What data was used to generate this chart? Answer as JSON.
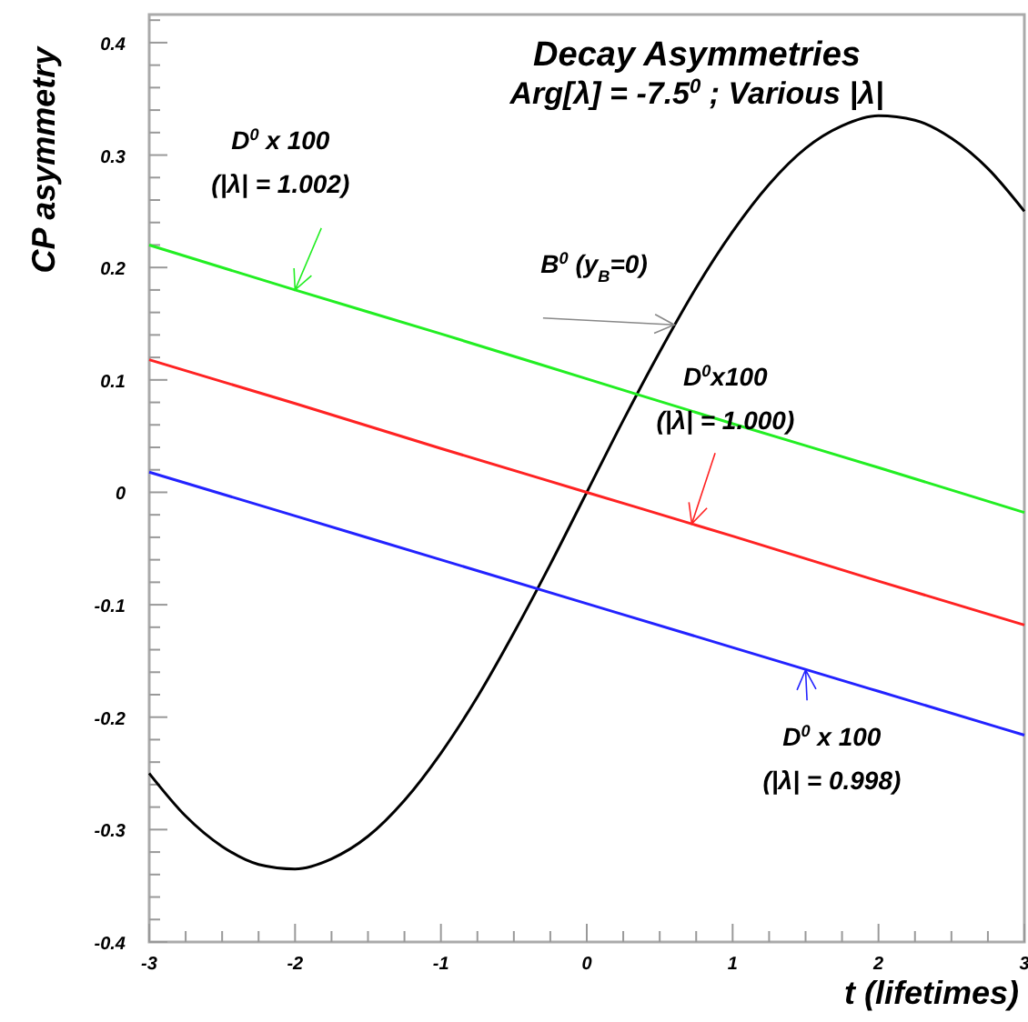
{
  "chart_data": {
    "type": "line",
    "title": "Decay Asymmetries",
    "subtitle": "Arg[λ] = -7.5$^{0}$ ; Various |λ|",
    "xlabel": "t (lifetimes)",
    "ylabel": "CP asymmetry",
    "xlim": [
      -3,
      3
    ],
    "xticks": [
      -3,
      {
        "value": -2.75,
        "label": null
      },
      {
        "value": -2.5,
        "label": null
      },
      {
        "value": -2.25,
        "label": null
      },
      -2,
      {
        "value": -1.75,
        "label": null
      },
      {
        "value": -1.5,
        "label": null
      },
      {
        "value": -1.25,
        "label": null
      },
      -1,
      {
        "value": -0.75,
        "label": null
      },
      {
        "value": -0.5,
        "label": null
      },
      {
        "value": -0.25,
        "label": null
      },
      0,
      {
        "value": 0.25,
        "label": null
      },
      {
        "value": 0.5,
        "label": null
      },
      {
        "value": 0.75,
        "label": null
      },
      1,
      {
        "value": 1.25,
        "label": null
      },
      {
        "value": 1.5,
        "label": null
      },
      {
        "value": 1.75,
        "label": null
      },
      2,
      {
        "value": 2.25,
        "label": null
      },
      {
        "value": 2.5,
        "label": null
      },
      {
        "value": 2.75,
        "label": null
      },
      3
    ],
    "ylim": [
      -0.4,
      0.425
    ],
    "yticks": [
      -0.4,
      {
        "value": -0.38,
        "label": null
      },
      {
        "value": -0.36,
        "label": null
      },
      {
        "value": -0.34,
        "label": null
      },
      {
        "value": -0.32,
        "label": null
      },
      -0.3,
      {
        "value": -0.28,
        "label": null
      },
      {
        "value": -0.26,
        "label": null
      },
      {
        "value": -0.24,
        "label": null
      },
      {
        "value": -0.22,
        "label": null
      },
      -0.2,
      {
        "value": -0.18,
        "label": null
      },
      {
        "value": -0.16,
        "label": null
      },
      {
        "value": -0.14,
        "label": null
      },
      {
        "value": -0.12,
        "label": null
      },
      -0.1,
      {
        "value": -0.08,
        "label": null
      },
      {
        "value": -0.06,
        "label": null
      },
      {
        "value": -0.04,
        "label": null
      },
      {
        "value": -0.02,
        "label": null
      },
      0,
      {
        "value": 0.02,
        "label": null
      },
      {
        "value": 0.04,
        "label": null
      },
      {
        "value": 0.06,
        "label": null
      },
      {
        "value": 0.08,
        "label": null
      },
      0.1,
      {
        "value": 0.12,
        "label": null
      },
      {
        "value": 0.14,
        "label": null
      },
      {
        "value": 0.16,
        "label": null
      },
      {
        "value": 0.18,
        "label": null
      },
      0.2,
      {
        "value": 0.22,
        "label": null
      },
      {
        "value": 0.24,
        "label": null
      },
      {
        "value": 0.26,
        "label": null
      },
      {
        "value": 0.28,
        "label": null
      },
      0.3,
      {
        "value": 0.32,
        "label": null
      },
      {
        "value": 0.34,
        "label": null
      },
      {
        "value": 0.36,
        "label": null
      },
      {
        "value": 0.38,
        "label": null
      },
      0.4,
      {
        "value": 0.42,
        "label": null
      }
    ],
    "x": [
      -3,
      -2.75,
      -2.5,
      -2.25,
      -2,
      -1.75,
      -1.5,
      -1.25,
      -1,
      -0.75,
      -0.5,
      -0.25,
      0,
      0.25,
      0.5,
      0.75,
      1,
      1.25,
      1.5,
      1.75,
      2,
      2.25,
      2.5,
      2.75,
      3
    ],
    "series": [
      {
        "color": "#000000",
        "values": [
          -0.25,
          -0.288,
          -0.315,
          -0.331,
          -0.335,
          -0.326,
          -0.306,
          -0.274,
          -0.232,
          -0.182,
          -0.125,
          -0.064,
          0,
          0.064,
          0.125,
          0.182,
          0.232,
          0.274,
          0.306,
          0.326,
          0.335,
          0.331,
          0.315,
          0.288,
          0.25
        ]
      },
      {
        "color": "#22ee22",
        "x": [
          -3,
          -2,
          -1,
          0,
          1,
          2,
          3
        ],
        "values": [
          0.22,
          0.18,
          0.141,
          0.101,
          0.061,
          0.022,
          -0.018
        ]
      },
      {
        "color": "#ff2222",
        "x": [
          -3,
          -2,
          -1,
          0,
          1,
          2,
          3
        ],
        "values": [
          0.118,
          0.079,
          0.039,
          0,
          -0.039,
          -0.079,
          -0.118
        ]
      },
      {
        "color": "#2222ff",
        "x": [
          -3,
          -2,
          -1,
          0,
          1,
          2,
          3
        ],
        "values": [
          0.018,
          -0.021,
          -0.06,
          -0.099,
          -0.138,
          -0.177,
          -0.216
        ]
      }
    ],
    "annotations": [
      {
        "text": "B$^{0}$ (y$_{B}$=0)",
        "x": 0.6,
        "y": 0.149
      },
      {
        "text": "D$^{0}$ x 100\n(|λ| = 1.002)",
        "x": -2,
        "y": 0.18
      },
      {
        "text": "D$^{0}$x100\n(|λ| = 1.000)",
        "x": 0.72,
        "y": -0.028
      },
      {
        "text": "D$^{0}$ x 100\n(|λ| = 0.998)",
        "x": 1.5,
        "y": -0.158
      }
    ],
    "grid": false,
    "marker": "none",
    "line_style": "solid"
  }
}
